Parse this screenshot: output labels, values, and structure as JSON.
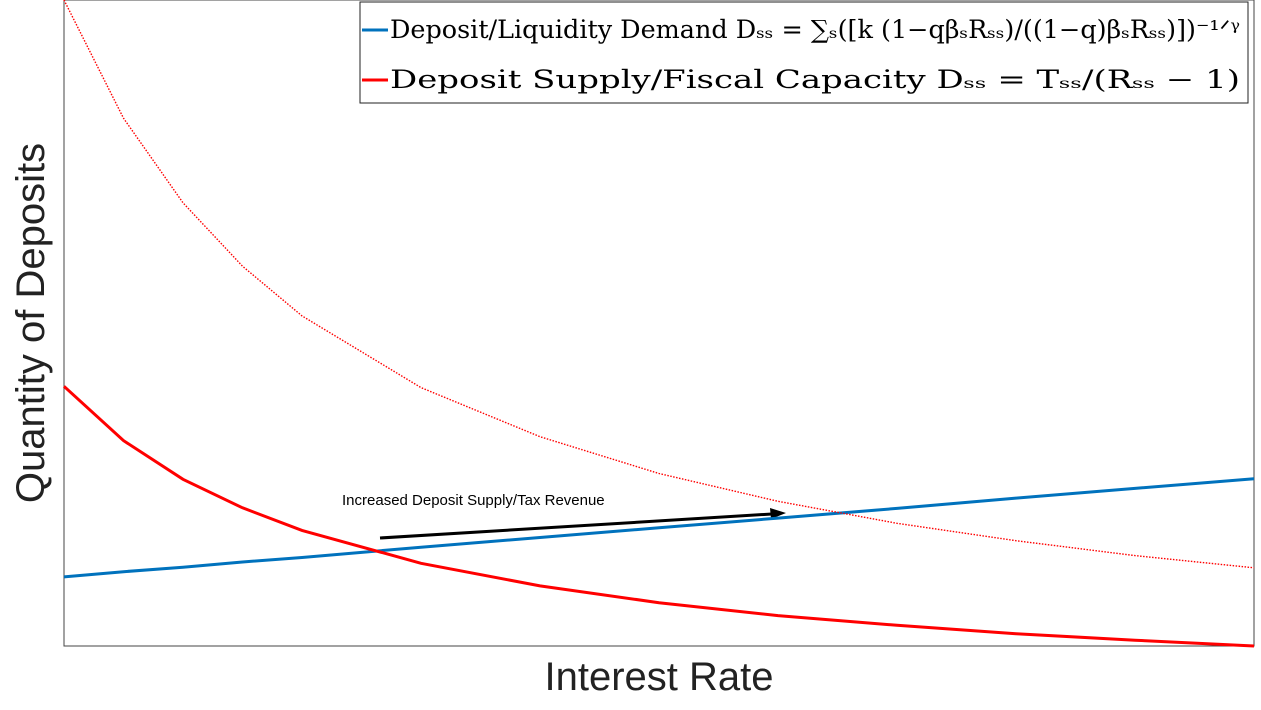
{
  "chart_data": {
    "type": "line",
    "xlabel": "Interest Rate",
    "ylabel": "Quantity of Deposits",
    "x": [
      0,
      0.05,
      0.1,
      0.15,
      0.2,
      0.3,
      0.4,
      0.5,
      0.6,
      0.7,
      0.8,
      0.9,
      1
    ],
    "xlim": [
      0,
      1
    ],
    "ylim": [
      0,
      100
    ],
    "legend": "upper right",
    "series": [
      {
        "name": "Deposit/Liquidity Demand Dₛₛ = ∑ₛ([k (1−qβₛRₛₛ)/((1−q)βₛRₛₛ)])⁻¹ᐟᵞ",
        "color": "#0072bd",
        "style": "solid",
        "values": [
          10.7,
          11.5,
          12.2,
          13.0,
          13.7,
          15.3,
          16.8,
          18.3,
          19.8,
          21.3,
          22.9,
          24.4,
          25.9
        ]
      },
      {
        "name": "Deposit Supply/Fiscal Capacity Dₛₛ = Tₛₛ/(Rₛₛ − 1)",
        "color": "#ff0000",
        "style": "solid",
        "values": [
          40.2,
          31.8,
          25.8,
          21.4,
          17.9,
          12.8,
          9.3,
          6.7,
          4.7,
          3.2,
          1.9,
          0.9,
          0.0
        ]
      },
      {
        "name": null,
        "color": "#ff0000",
        "style": "dotted",
        "values": [
          100.0,
          81.7,
          68.6,
          58.8,
          51.1,
          40.0,
          32.4,
          26.7,
          22.4,
          19.0,
          16.3,
          14.0,
          12.1
        ]
      }
    ],
    "annotation": "Increased Deposit Supply/Tax Revenue"
  }
}
